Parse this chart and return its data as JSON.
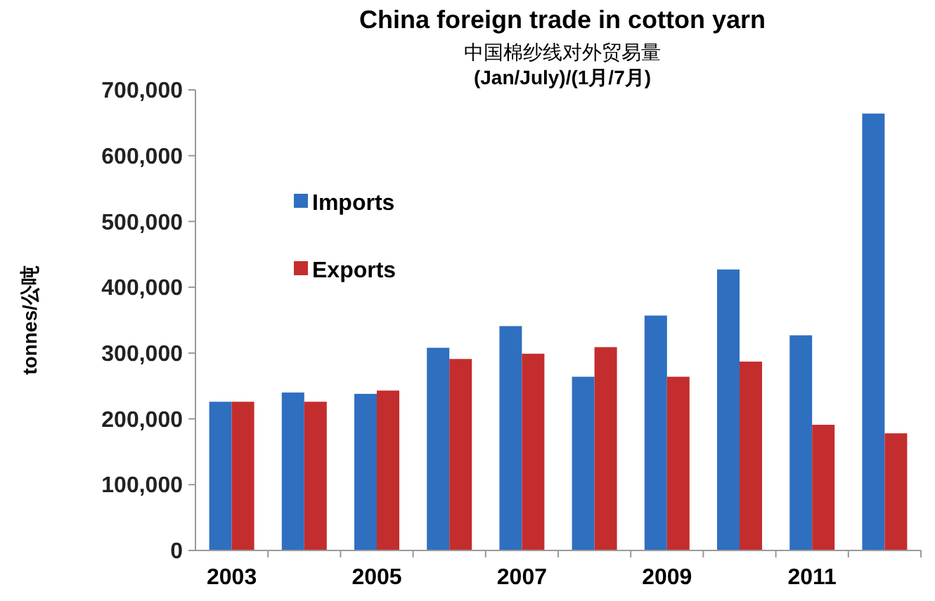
{
  "chart_data": {
    "type": "bar",
    "title": "China foreign trade in cotton yarn",
    "subtitle": "中国棉纱线对外贸易量",
    "annotations": [
      "(Jan/July)/(1月/7月)"
    ],
    "ylabel": "tonnes/公吨",
    "categories": [
      "2003",
      null,
      "2005",
      null,
      "2007",
      null,
      "2009",
      null,
      "2011",
      null
    ],
    "series": [
      {
        "name": "Imports",
        "color": "#2f6fc0",
        "values": [
          226000,
          240000,
          238000,
          308000,
          341000,
          264000,
          357000,
          427000,
          327000,
          664000
        ]
      },
      {
        "name": "Exports",
        "color": "#c42d2d",
        "values": [
          226000,
          226000,
          243000,
          291000,
          299000,
          309000,
          264000,
          287000,
          191000,
          178000
        ]
      }
    ],
    "ylim": [
      0,
      700000
    ],
    "yticks": [
      {
        "value": 0,
        "label": "0"
      },
      {
        "value": 100000,
        "label": "100,000"
      },
      {
        "value": 200000,
        "label": "200,000"
      },
      {
        "value": 300000,
        "label": "300,000"
      },
      {
        "value": 400000,
        "label": "400,000"
      },
      {
        "value": 500000,
        "label": "500,000"
      },
      {
        "value": 600000,
        "label": "600,000"
      },
      {
        "value": 700000,
        "label": "700,000"
      }
    ],
    "grid": false,
    "legend": "top left"
  }
}
